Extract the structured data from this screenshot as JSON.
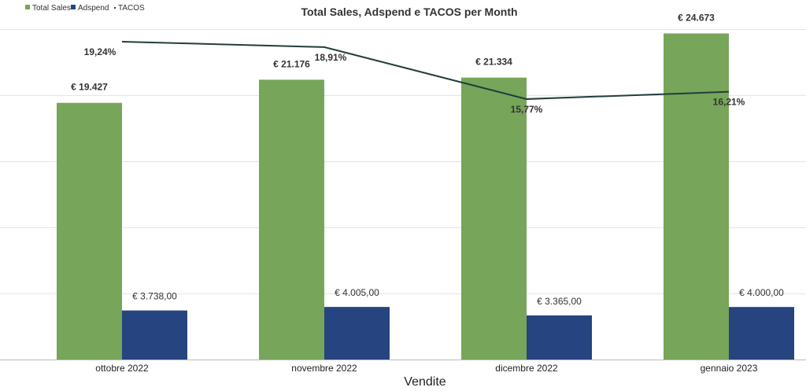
{
  "chart_data": {
    "type": "bar",
    "title": "Total Sales, Adspend e TACOS per Month",
    "xlabel": "Vendite",
    "ylabel": "",
    "categories": [
      "ottobre 2022",
      "novembre 2022",
      "dicembre 2022",
      "gennaio 2023"
    ],
    "ylim": [
      0,
      25000
    ],
    "y2lim": [
      0,
      20
    ],
    "grid": true,
    "legend_position": "top-left",
    "series": [
      {
        "name": "Total Sales",
        "type": "bar",
        "color": "#77a55a",
        "values": [
          19427,
          21176,
          21334,
          24673
        ],
        "labels": [
          "€ 19.427",
          "€ 21.176",
          "€ 21.334",
          "€ 24.673"
        ]
      },
      {
        "name": "Adspend",
        "type": "bar",
        "color": "#26447f",
        "values": [
          3738,
          4005,
          3365,
          4000
        ],
        "labels": [
          "€ 3.738,00",
          "€ 4.005,00",
          "€ 3.365,00",
          "€ 4.000,00"
        ]
      },
      {
        "name": "TACOS",
        "type": "line",
        "color": "#233d3c",
        "axis": "secondary",
        "values": [
          19.24,
          18.91,
          15.77,
          16.21
        ],
        "labels": [
          "19,24%",
          "18,91%",
          "15,77%",
          "16,21%"
        ]
      }
    ]
  }
}
